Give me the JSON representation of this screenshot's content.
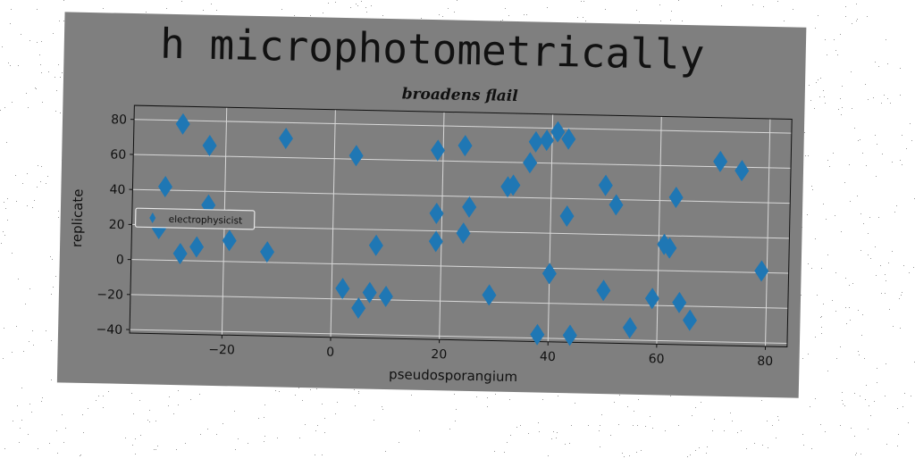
{
  "chart_data": {
    "type": "scatter",
    "suptitle": "h microphotometrically",
    "title": "broadens flail",
    "xlabel": "pseudosporangium",
    "ylabel": "replicate",
    "xlim": [
      -37,
      84
    ],
    "ylim": [
      -42,
      88
    ],
    "xticks": [
      -20,
      0,
      20,
      40,
      60,
      80
    ],
    "yticks": [
      -40,
      -20,
      0,
      20,
      40,
      60,
      80
    ],
    "grid": true,
    "legend_position": "center-left",
    "marker": "thin-diamond",
    "series": [
      {
        "name": "electrophysicist",
        "color": "#1f77b4",
        "points": [
          [
            -28,
            78
          ],
          [
            -23,
            66
          ],
          [
            -31,
            42
          ],
          [
            -23,
            32
          ],
          [
            -32,
            18
          ],
          [
            -28,
            4
          ],
          [
            -25,
            8
          ],
          [
            -19,
            12
          ],
          [
            -12,
            6
          ],
          [
            -9,
            71
          ],
          [
            4,
            62
          ],
          [
            2,
            -14
          ],
          [
            5,
            -25
          ],
          [
            7,
            -16
          ],
          [
            8,
            11
          ],
          [
            10,
            -18
          ],
          [
            19,
            66
          ],
          [
            19,
            30
          ],
          [
            19,
            14
          ],
          [
            24,
            69
          ],
          [
            24,
            19
          ],
          [
            25,
            34
          ],
          [
            29,
            -16
          ],
          [
            32,
            46
          ],
          [
            33,
            47
          ],
          [
            36,
            60
          ],
          [
            37,
            72
          ],
          [
            39,
            73
          ],
          [
            41,
            78
          ],
          [
            43,
            74
          ],
          [
            43,
            30
          ],
          [
            38,
            -38
          ],
          [
            44,
            -38
          ],
          [
            40,
            -3
          ],
          [
            50,
            48
          ],
          [
            52,
            37
          ],
          [
            50,
            -12
          ],
          [
            55,
            -33
          ],
          [
            59,
            -16
          ],
          [
            61,
            15
          ],
          [
            62,
            13
          ],
          [
            63,
            42
          ],
          [
            64,
            -18
          ],
          [
            66,
            -28
          ],
          [
            71,
            63
          ],
          [
            75,
            58
          ],
          [
            79,
            1
          ]
        ]
      }
    ]
  }
}
